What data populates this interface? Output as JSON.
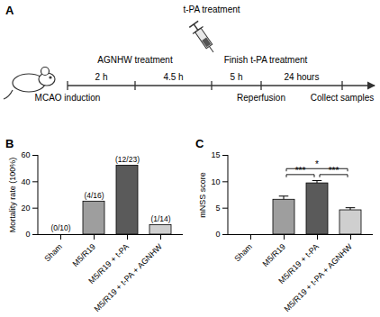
{
  "timeline": {
    "label": "A",
    "events": [
      {
        "below": "MCAO induction"
      },
      {
        "above": "AGNHW treatment"
      },
      {
        "above": "t-PA treatment"
      },
      {
        "above": "Finish t-PA treatment",
        "below": "Reperfusion"
      },
      {
        "below": "Collect samples"
      }
    ],
    "intervals": [
      "2 h",
      "4.5 h",
      "5 h",
      "24 hours"
    ]
  },
  "chart_data": [
    {
      "label": "B",
      "type": "bar",
      "y_label": "Mortality rate (100%)",
      "categories": [
        "Sham",
        "M5/R19",
        "M5/R19 + t-PA",
        "M5/R19 + t-PA + AGNHW"
      ],
      "values": [
        0,
        25,
        52.17,
        7.14
      ],
      "annotations": [
        "(0/10)",
        "(4/16)",
        "(12/23)",
        "(1/14)"
      ],
      "colors": [
        "#9e9e9e",
        "#9e9e9e",
        "#5a5a5a",
        "#cfcfcf"
      ],
      "ylim": [
        0,
        60
      ],
      "yticks": [
        0,
        20,
        40,
        60
      ]
    },
    {
      "label": "C",
      "type": "bar",
      "y_label": "mNSS score",
      "categories": [
        "Sham",
        "M5/R19",
        "M5/R19 + t-PA",
        "M5/R19 + t-PA + AGNHW"
      ],
      "values": [
        0,
        6.6,
        9.7,
        4.6
      ],
      "errors": [
        null,
        0.6,
        0.45,
        0.4
      ],
      "colors": [
        "#9e9e9e",
        "#9e9e9e",
        "#5a5a5a",
        "#cfcfcf"
      ],
      "ylim": [
        0,
        15
      ],
      "yticks": [
        0,
        5,
        10,
        15
      ],
      "significance": [
        {
          "from": "M5/R19",
          "to": "M5/R19 + t-PA + AGNHW",
          "label": "*"
        },
        {
          "from": "M5/R19",
          "to": "M5/R19 + t-PA",
          "label": "***"
        },
        {
          "from": "M5/R19 + t-PA",
          "to": "M5/R19 + t-PA + AGNHW",
          "label": "***"
        }
      ]
    }
  ]
}
